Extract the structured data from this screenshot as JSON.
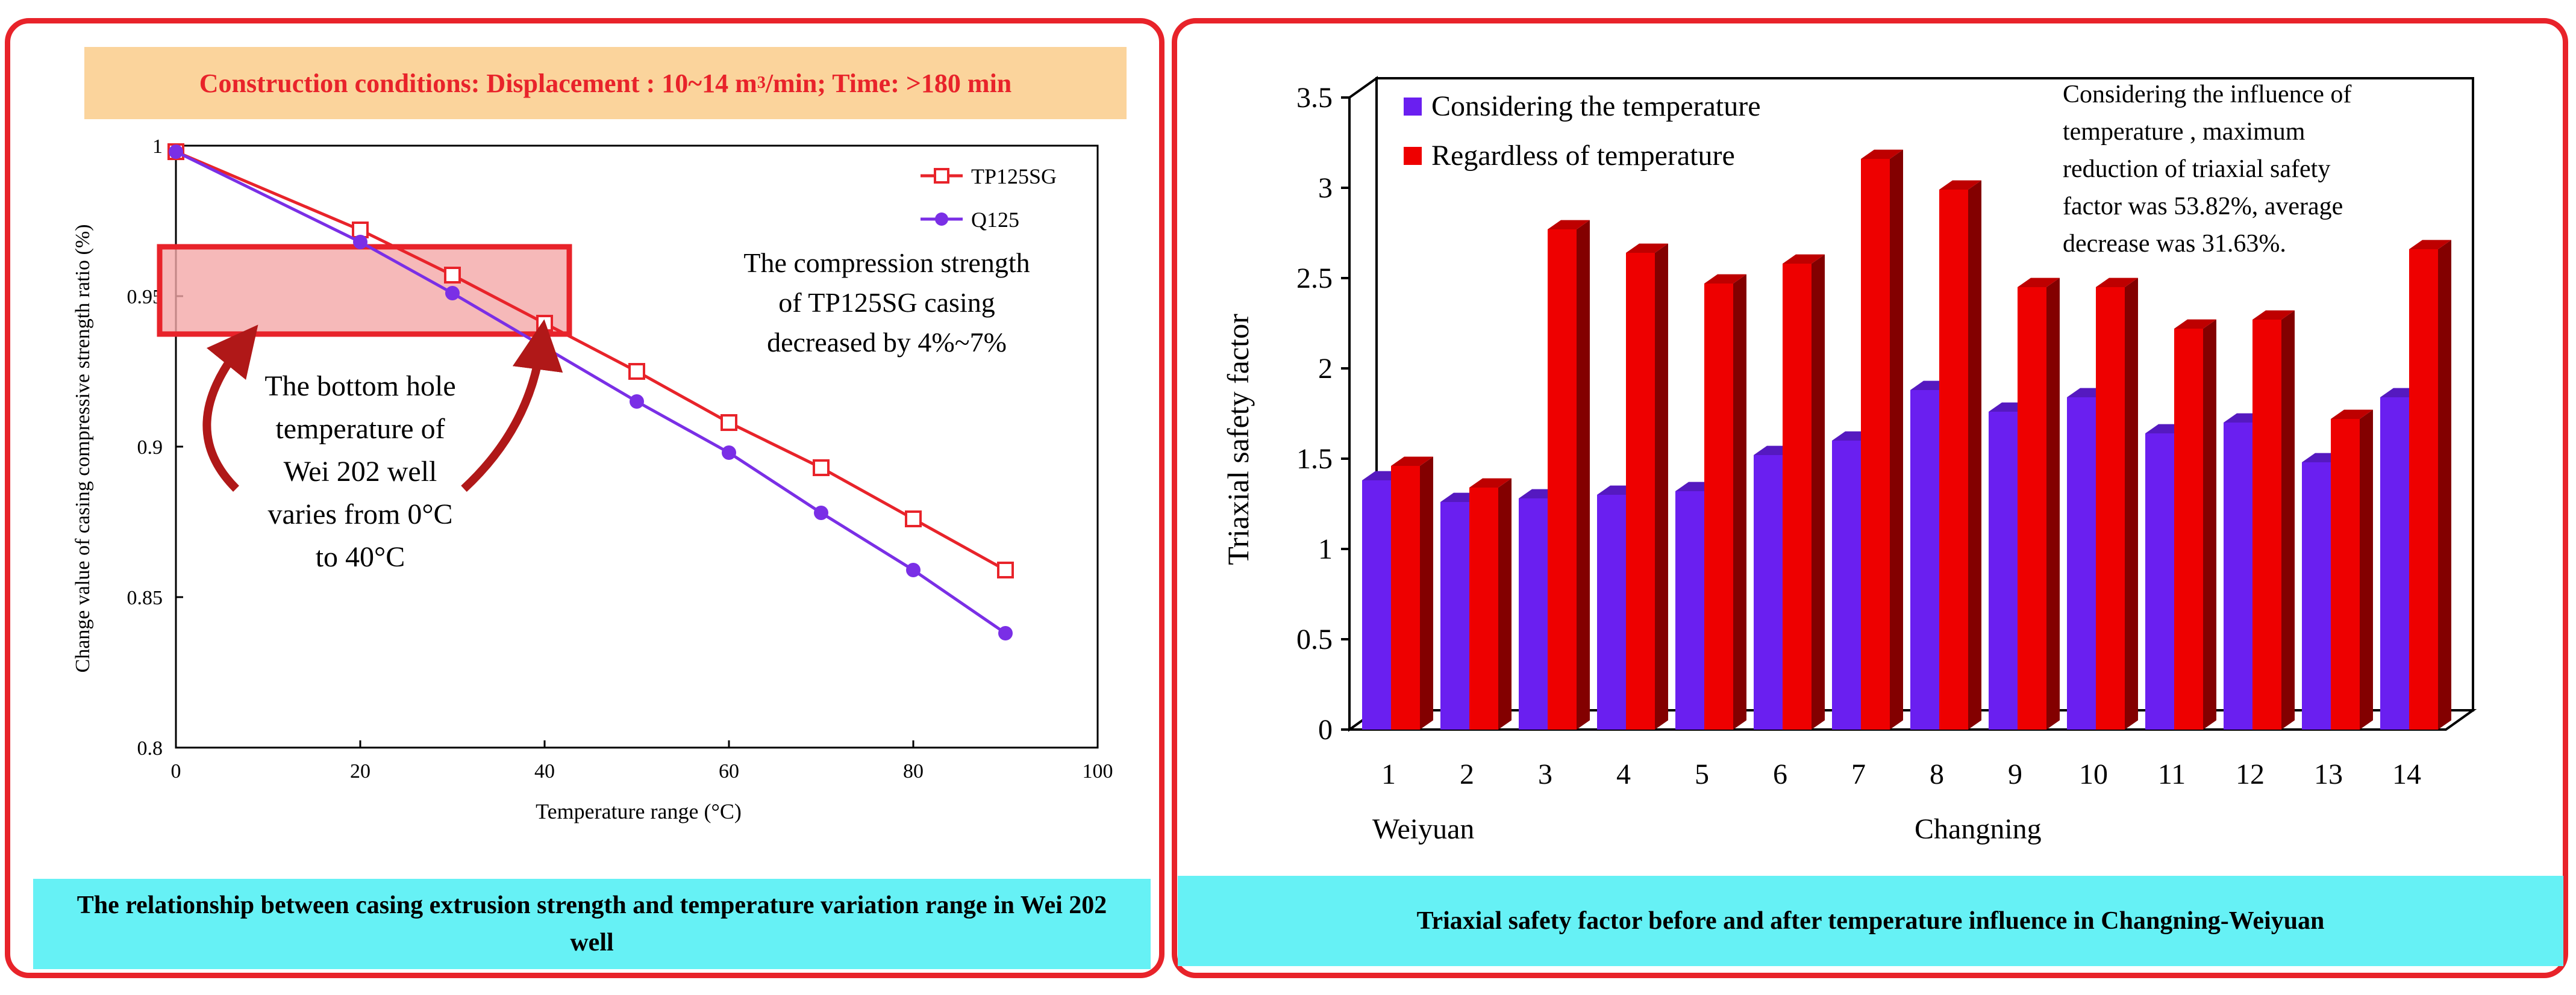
{
  "left": {
    "banner_prefix": "Construction conditions: Displacement : 10~14 m",
    "banner_sup": "3",
    "banner_suffix": "/min; Time: >180 min",
    "caption": "The relationship between casing extrusion strength and temperature variation range in Wei 202 well",
    "annotation_strength": [
      "The compression strength",
      "of TP125SG casing",
      "decreased by 4%~7%"
    ],
    "annotation_temp": [
      "The bottom hole",
      "temperature of",
      "Wei 202 well",
      "varies from 0°C",
      "to 40°C"
    ]
  },
  "right": {
    "caption": "Triaxial safety factor before and after temperature influence in Changning-Weiyuan",
    "note_lines": [
      "Considering the influence of",
      "temperature ,  maximum",
      "reduction of triaxial safety",
      "factor was 53.82%, average",
      "decrease was 31.63%."
    ],
    "group_labels": [
      "Weiyuan",
      "Changning"
    ]
  },
  "chart_data": [
    {
      "type": "line",
      "xlabel": "Temperature range (°C)",
      "ylabel": "Change value of casing compressive strength ratio (%)",
      "xlim": [
        0,
        100
      ],
      "ylim": [
        0.8,
        1
      ],
      "xticks": [
        "0",
        "20",
        "40",
        "60",
        "80",
        "100"
      ],
      "yticks": [
        "0.8",
        "0.85",
        "0.9",
        "0.95",
        "1"
      ],
      "legend_position": "top-right",
      "series": [
        {
          "name": "TP125SG",
          "color": "#e8232a",
          "marker": "square-open",
          "x": [
            0,
            20,
            30,
            40,
            50,
            60,
            70,
            80,
            90
          ],
          "y": [
            0.998,
            0.972,
            0.957,
            0.941,
            0.925,
            0.908,
            0.893,
            0.876,
            0.859
          ]
        },
        {
          "name": "Q125",
          "color": "#7a2fe6",
          "marker": "circle-filled",
          "x": [
            0,
            20,
            30,
            40,
            50,
            60,
            70,
            80,
            90
          ],
          "y": [
            0.998,
            0.968,
            0.951,
            0.933,
            0.915,
            0.898,
            0.878,
            0.859,
            0.838
          ]
        }
      ]
    },
    {
      "type": "bar",
      "ylabel": "Triaxial safety factor",
      "ylim": [
        0,
        3.5
      ],
      "yticks": [
        "0",
        "0.5",
        "1",
        "1.5",
        "2",
        "2.5",
        "3",
        "3.5"
      ],
      "categories": [
        "1",
        "2",
        "3",
        "4",
        "5",
        "6",
        "7",
        "8",
        "9",
        "10",
        "11",
        "12",
        "13",
        "14"
      ],
      "legend_position": "top-left",
      "series": [
        {
          "name": "Considering the temperature",
          "color": "#6a1ff0",
          "values": [
            1.38,
            1.26,
            1.28,
            1.3,
            1.32,
            1.52,
            1.6,
            1.88,
            1.76,
            1.84,
            1.64,
            1.7,
            1.48,
            1.84
          ]
        },
        {
          "name": "Regardless of temperature",
          "color": "#ee0000",
          "values": [
            1.46,
            1.34,
            2.77,
            2.64,
            2.47,
            2.58,
            3.16,
            2.99,
            2.45,
            2.45,
            2.22,
            2.27,
            1.72,
            2.66
          ]
        }
      ]
    }
  ]
}
